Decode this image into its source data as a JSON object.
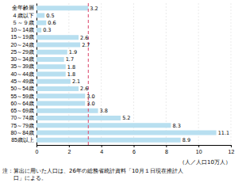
{
  "chart_data": {
    "type": "bar",
    "orientation": "horizontal",
    "categories": [
      "全年齢層",
      "４歳以下",
      "５～９歳",
      "10～14歳",
      "15～19歳",
      "20～24歳",
      "25～29歳",
      "30～34歳",
      "35～39歳",
      "40～44歳",
      "45～49歳",
      "50～54歳",
      "55～59歳",
      "60～64歳",
      "65～69歳",
      "70～74歳",
      "75～79歳",
      "80～84歳",
      "85歳以上"
    ],
    "values": [
      3.2,
      0.5,
      0.6,
      0.3,
      2.6,
      2.7,
      1.9,
      1.7,
      1.8,
      1.8,
      2.1,
      2.6,
      3.0,
      3.0,
      3.8,
      5.2,
      8.3,
      11.1,
      8.9
    ],
    "value_labels": [
      "3.2",
      "0.5",
      "0.6",
      "0.3",
      "2.6",
      "2.7",
      "1.9",
      "1.7",
      "1.8",
      "1.8",
      "2.1",
      "2.6",
      "3.0",
      "3.0",
      "3.8",
      "5.2",
      "8.3",
      "11.1",
      "8.9"
    ],
    "data_labels": true,
    "color": "#b8dff0",
    "reference_line": {
      "value": 3.2,
      "color": "#e06080",
      "line_style": "dashed"
    },
    "xlabel": "（人／人口10万人）",
    "xlim": [
      0,
      12
    ],
    "xticks": [
      0,
      2,
      4,
      6,
      8,
      10,
      12
    ],
    "grid": true,
    "annotations": [
      "注：算出に用いた人口は、26年の総務省統計資料「10月１日現在推計人",
      "　　口」による。"
    ]
  }
}
